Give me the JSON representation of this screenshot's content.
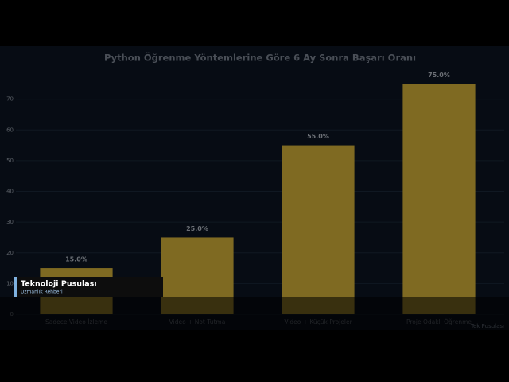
{
  "chart_data": {
    "type": "bar",
    "title": "Python Öğrenme Yöntemlerine Göre 6 Ay Sonra Başarı Oranı",
    "categories": [
      "Sadece Video İzleme",
      "Video + Not Tutma",
      "Video + Küçük Projeler",
      "Proje Odaklı Öğrenme"
    ],
    "values": [
      15,
      25,
      55,
      75
    ],
    "value_labels": [
      "15.0%",
      "25.0%",
      "55.0%",
      "75.0%"
    ],
    "color": "#7f6a22",
    "ylim": [
      0,
      80
    ],
    "yticks": [
      0,
      10,
      20,
      30,
      40,
      50,
      60,
      70
    ],
    "grid": true
  },
  "overlay": {
    "title": "Teknoloji Pusulası",
    "subtitle": "Uzmanlık Rehberi",
    "watermark": "Tek Pusulası"
  }
}
